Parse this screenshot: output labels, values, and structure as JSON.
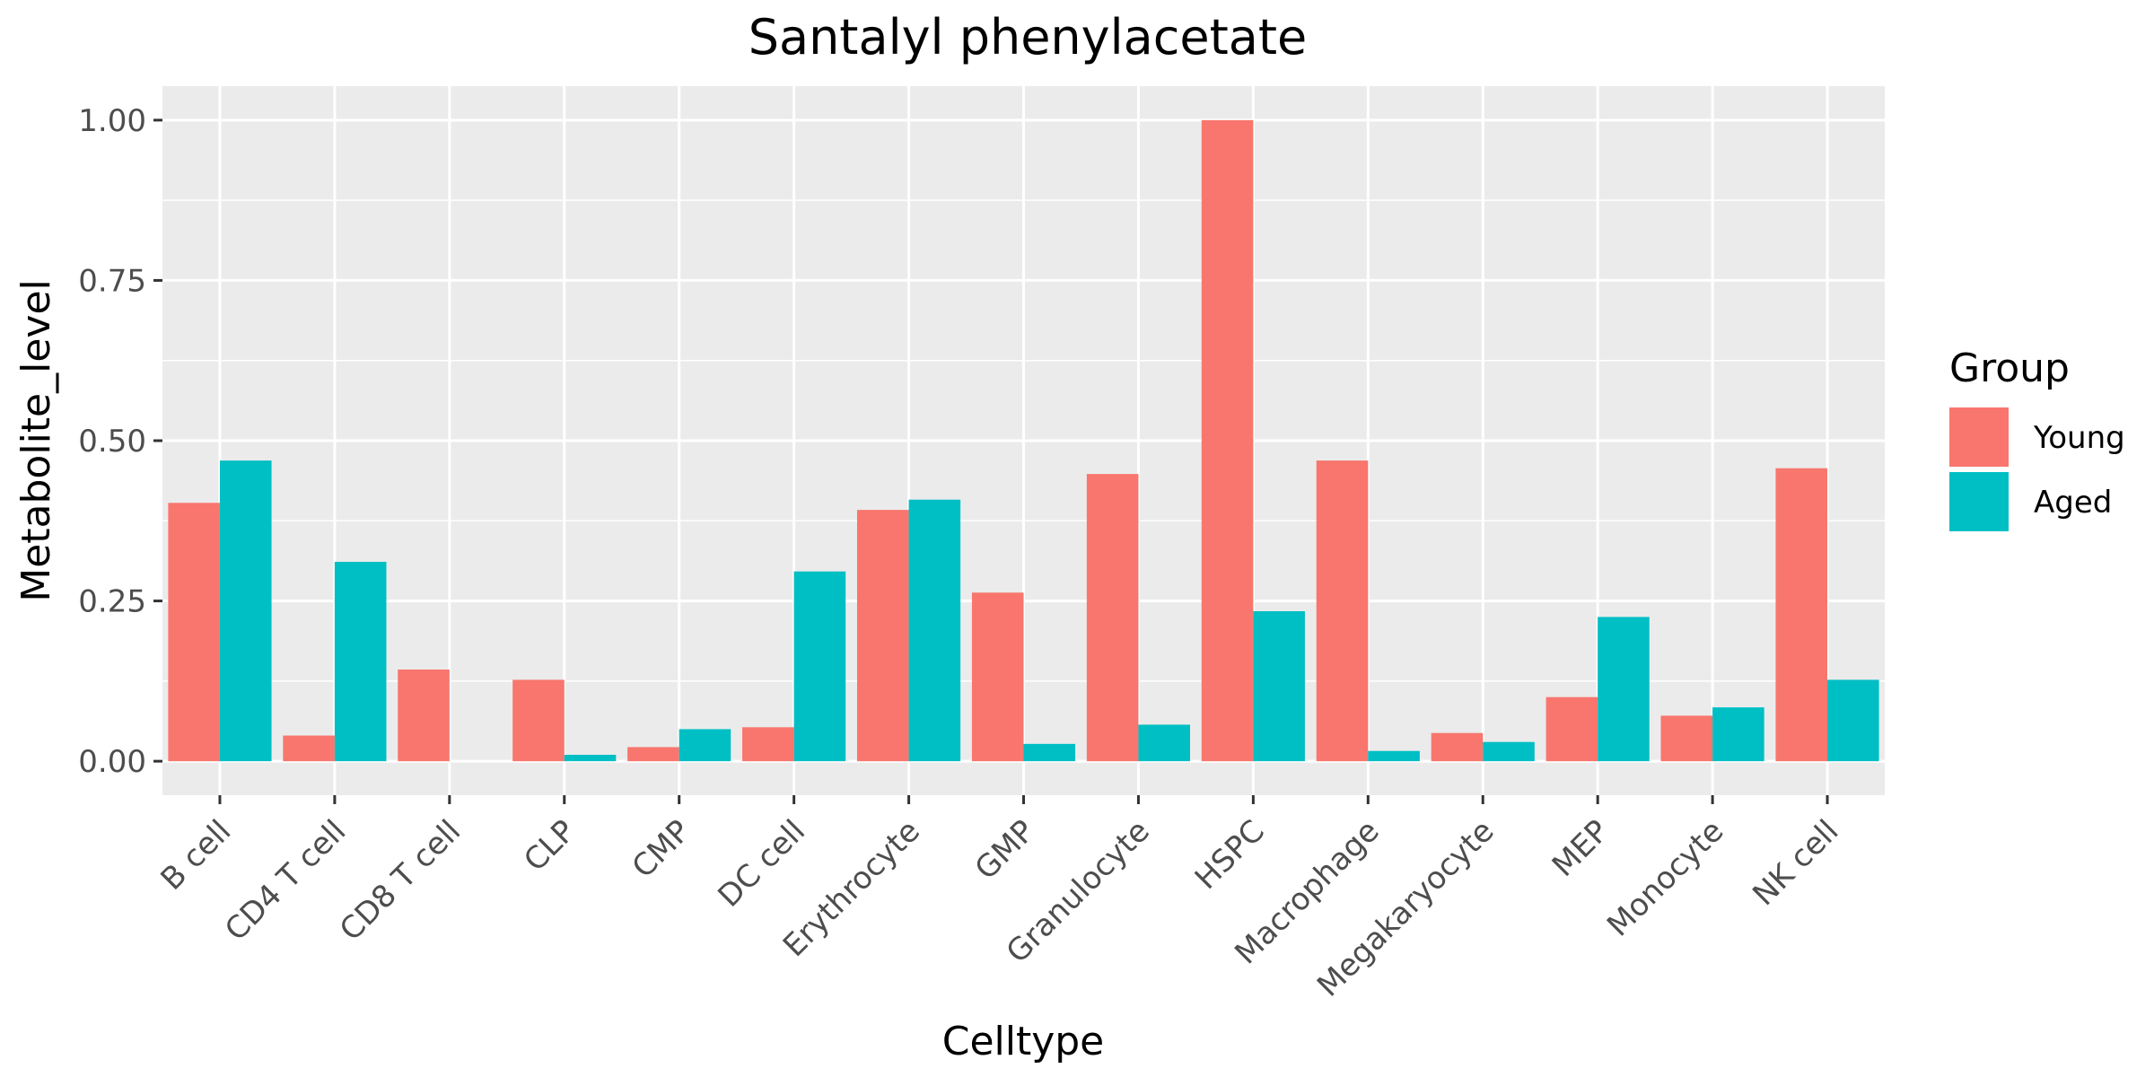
{
  "chart_data": {
    "type": "bar",
    "title": "Santalyl phenylacetate",
    "xlabel": "Celltype",
    "ylabel": "Metabolite_level",
    "ylim": [
      -0.053,
      1.053
    ],
    "yticks": [
      0.0,
      0.25,
      0.5,
      0.75,
      1.0
    ],
    "ytick_labels": [
      "0.00",
      "0.25",
      "0.50",
      "0.75",
      "1.00"
    ],
    "grid": true,
    "legend": {
      "title": "Group",
      "placement": "right"
    },
    "categories": [
      "B cell",
      "CD4 T cell",
      "CD8 T cell",
      "CLP",
      "CMP",
      "DC cell",
      "Erythrocyte",
      "GMP",
      "Granulocyte",
      "HSPC",
      "Macrophage",
      "Megakaryocyte",
      "MEP",
      "Monocyte",
      "NK cell"
    ],
    "series": [
      {
        "name": "Young",
        "color": "#F8766D",
        "values": [
          0.403,
          0.04,
          0.143,
          0.127,
          0.022,
          0.053,
          0.392,
          0.263,
          0.448,
          1.0,
          0.469,
          0.044,
          0.1,
          0.071,
          0.457
        ]
      },
      {
        "name": "Aged",
        "color": "#00BFC4",
        "values": [
          0.469,
          0.311,
          0.0,
          0.01,
          0.05,
          0.296,
          0.408,
          0.027,
          0.057,
          0.234,
          0.016,
          0.03,
          0.225,
          0.084,
          0.127
        ]
      }
    ]
  }
}
